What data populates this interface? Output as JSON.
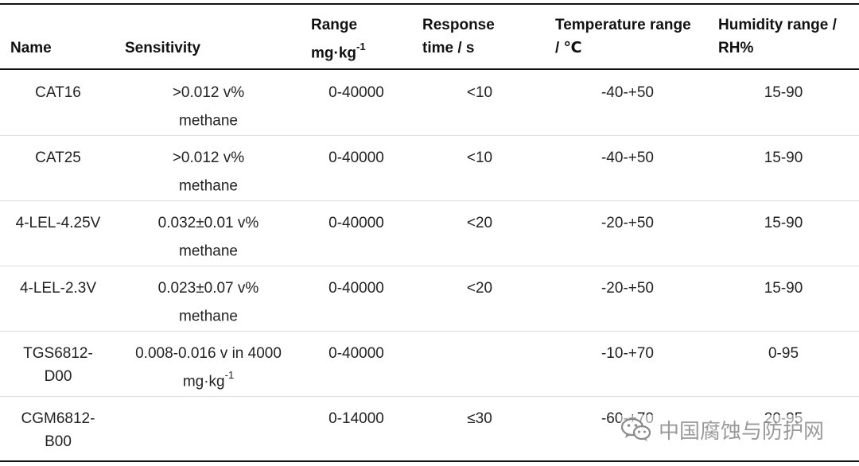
{
  "headers": {
    "name": "Name",
    "sensitivity": "Sensitivity",
    "range_line1": "Range",
    "range_line2": "mg·kg",
    "range_sup": "-1",
    "response_line1": "Response",
    "response_line2": "time / s",
    "temperature_line1": "Temperature range",
    "temperature_line2": "/ ℃",
    "humidity_line1": "Humidity range /",
    "humidity_line2": "RH%"
  },
  "rows": [
    {
      "name_line1": "CAT16",
      "name_line2": "",
      "sens_line1": ">0.012 v%",
      "sens_line2": "methane",
      "sens_sup": "",
      "range": "0-40000",
      "response": "<10",
      "temperature": "-40-+50",
      "humidity": "15-90"
    },
    {
      "name_line1": "CAT25",
      "name_line2": "",
      "sens_line1": ">0.012 v%",
      "sens_line2": "methane",
      "sens_sup": "",
      "range": "0-40000",
      "response": "<10",
      "temperature": "-40-+50",
      "humidity": "15-90"
    },
    {
      "name_line1": "4-LEL-4.25V",
      "name_line2": "",
      "sens_line1": "0.032±0.01 v%",
      "sens_line2": "methane",
      "sens_sup": "",
      "range": "0-40000",
      "response": "<20",
      "temperature": "-20-+50",
      "humidity": "15-90"
    },
    {
      "name_line1": "4-LEL-2.3V",
      "name_line2": "",
      "sens_line1": "0.023±0.07 v%",
      "sens_line2": "methane",
      "sens_sup": "",
      "range": "0-40000",
      "response": "<20",
      "temperature": "-20-+50",
      "humidity": "15-90"
    },
    {
      "name_line1": "TGS6812-",
      "name_line2": "D00",
      "sens_line1": "0.008-0.016 v in 4000",
      "sens_line2": "mg·kg",
      "sens_sup": "-1",
      "range": "0-40000",
      "response": "",
      "temperature": "-10-+70",
      "humidity": "0-95"
    },
    {
      "name_line1": "CGM6812-",
      "name_line2": "B00",
      "sens_line1": "",
      "sens_line2": "",
      "sens_sup": "",
      "range": "0-14000",
      "response": "≤30",
      "temperature": "-60-+70",
      "humidity": "20-95"
    }
  ],
  "watermark": {
    "text": "中国腐蚀与防护网",
    "icon": "wechat-icon",
    "color": "#8a8a8a"
  }
}
